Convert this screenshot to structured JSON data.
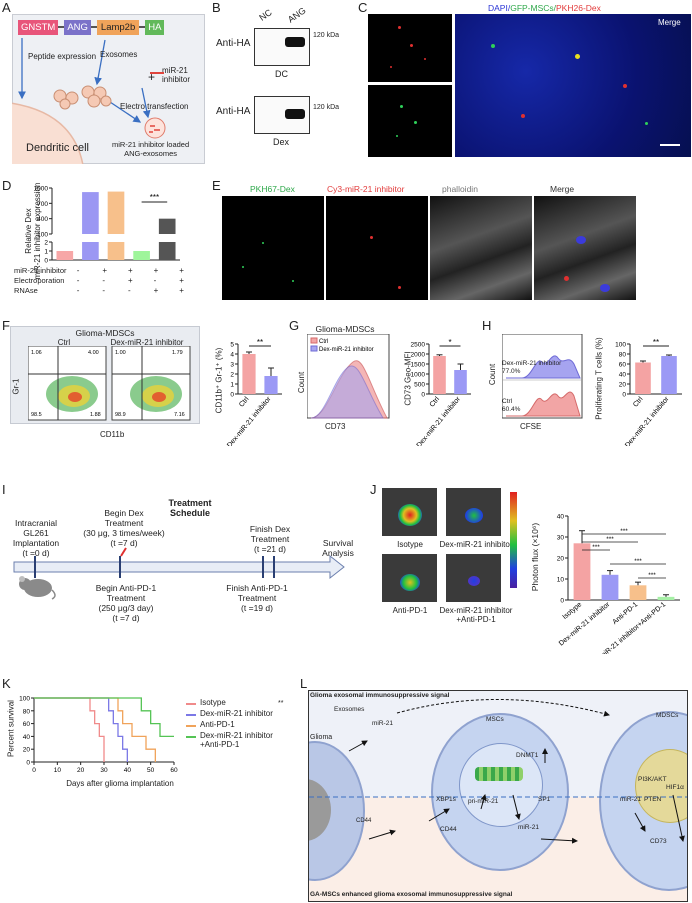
{
  "panels": [
    "A",
    "B",
    "C",
    "D",
    "E",
    "F",
    "G",
    "H",
    "I",
    "J",
    "K",
    "L"
  ],
  "panelA": {
    "construct": [
      "GNSTM",
      "ANG",
      "Lamp2b",
      "HA"
    ],
    "peptide_expression": "Peptide expression",
    "exosomes": "Exosomes",
    "mir21_inhibitor": "miR-21\ninhibitor",
    "electro": "Electro transfection",
    "loaded": "miR-21 inhibitor loaded\nANG-exosomes",
    "cell": "Dendritic cell",
    "colors": {
      "GNSTM": "#e8557a",
      "ANG": "#7b72c9",
      "Lamp2b": "#f0a35a",
      "HA": "#62b95a"
    }
  },
  "panelB": {
    "nc": "NC",
    "ang": "ANG",
    "anti_ha": "Anti-HA",
    "marker": "120 kDa",
    "dc": "DC",
    "dex": "Dex"
  },
  "panelC": {
    "dapi": "DAPI/",
    "gfp": "GFP-MSCs/",
    "pkh": "PKH26-Dex",
    "merge": "Merge"
  },
  "panelD": {
    "ylabel": "Relative Dex\nmiR-21 inhibitor expression",
    "rows": [
      "miR-21 inhibitor",
      "Electroporation",
      "RNAse"
    ],
    "signs": [
      [
        "-",
        "+",
        "+",
        "+",
        "+"
      ],
      [
        "-",
        "-",
        "+",
        "-",
        "+"
      ],
      [
        "-",
        "-",
        "-",
        "+",
        "+"
      ]
    ],
    "sig": "***",
    "chart_data": {
      "type": "bar",
      "categories": [
        "1",
        "2",
        "3",
        "4",
        "5"
      ],
      "values": [
        1,
        920,
        930,
        1,
        400
      ],
      "ylim_top": [
        100,
        1000
      ],
      "ylim_bottom": [
        0,
        2
      ],
      "y_ticks_top": [
        100,
        400,
        700,
        1000
      ],
      "y_ticks_bottom": [
        0,
        1,
        2
      ],
      "colors": [
        "#f7a7a7",
        "#9b97f3",
        "#f7c08b",
        "#9ff59b",
        "#555555"
      ]
    }
  },
  "panelE": {
    "pkh67": "PKH67-Dex",
    "cy3": "Cy3-miR-21 inhibitor",
    "phalloidin": "phalloidin",
    "merge": "Merge"
  },
  "panelF": {
    "title": "Glioma-MDSCs",
    "ctrl": "Ctrl",
    "dex": "Dex-miR-21 inhibitor",
    "ylabel": "Gr-1",
    "xlabel": "CD11b",
    "quad_ctrl": [
      "1.06",
      "4.00",
      "98.5",
      "1.88"
    ],
    "quad_dex": [
      "1.00",
      "1.79",
      "98.9",
      "7.16"
    ],
    "bar_ylabel": "CD11b⁺ Gr-1⁺ (%)",
    "sig": "**",
    "chart_data": {
      "type": "bar",
      "categories": [
        "Ctrl",
        "Dex-miR-21 inhibitor"
      ],
      "values": [
        4.0,
        1.8
      ],
      "errors": [
        0.2,
        0.8
      ],
      "ylim": [
        0,
        5
      ],
      "yticks": [
        0,
        1,
        2,
        3,
        4,
        5
      ],
      "colors": [
        "#f4a3a3",
        "#9b99f5"
      ]
    }
  },
  "panelG": {
    "title": "Glioma-MDSCs",
    "legend": [
      "Ctrl",
      "Dex-miR-21 inhibitor"
    ],
    "ylabel": "Count",
    "xlabel": "CD73",
    "bar_ylabel": "CD73 Geo-MFI",
    "sig": "*",
    "chart_data": {
      "type": "bar",
      "categories": [
        "Ctrl",
        "Dex-miR-21 inhibitor"
      ],
      "values": [
        1900,
        1200
      ],
      "errors": [
        60,
        300
      ],
      "ylim": [
        0,
        2500
      ],
      "yticks": [
        0,
        500,
        1000,
        1500,
        2000,
        2500
      ],
      "colors": [
        "#f4a3a3",
        "#9b99f5"
      ]
    }
  },
  "panelH": {
    "ylabel": "Count",
    "xlabel": "CFSE",
    "dex_label": "Dex-miR-21 inhibitor",
    "dex_value": "77.0%",
    "ctrl_label": "Ctrl",
    "ctrl_value": "60.4%",
    "bar_ylabel": "Proliferating T cells (%)",
    "sig": "**",
    "chart_data": {
      "type": "bar",
      "categories": [
        "Ctrl",
        "Dex-miR-21 inhibitor"
      ],
      "values": [
        63,
        76
      ],
      "errors": [
        3,
        2
      ],
      "ylim": [
        0,
        100
      ],
      "yticks": [
        0,
        20,
        40,
        60,
        80,
        100
      ],
      "colors": [
        "#f4a3a3",
        "#9b99f5"
      ]
    }
  },
  "panelI": {
    "title": "Treatment\nSchedule",
    "implant": "Intracranial\nGL261\nImplantation\n(t =0 d)",
    "begin_dex": "Begin Dex\nTreatment\n(30 μg, 3 times/week)\n(t =7 d)",
    "finish_dex": "Finish Dex\nTreatment\n(t =21 d)",
    "survival": "Survival\nAnalysis",
    "begin_pd1": "Begin Anti-PD-1\nTreatment\n(250 μg/3 day)\n(t =7 d)",
    "finish_pd1": "Finish Anti-PD-1\nTreatment\n(t =19 d)"
  },
  "panelJ": {
    "groups": [
      "Isotype",
      "Dex-miR-21 inhibitor",
      "Anti-PD-1",
      "Dex-miR-21 inhibitor\n+Anti-PD-1"
    ],
    "ylabel": "Photon flux (×10⁶)",
    "sig": [
      "***",
      "***",
      "***",
      "***",
      "***"
    ],
    "chart_data": {
      "type": "bar",
      "categories": [
        "Isotype",
        "Dex-miR-21 inhibitor",
        "Anti-PD-1",
        "Dex-miR-21 inhibitor+Anti-PD-1"
      ],
      "values": [
        27,
        12,
        7,
        1.5
      ],
      "errors": [
        6,
        2,
        1.5,
        1
      ],
      "ylim": [
        0,
        40
      ],
      "yticks": [
        0,
        10,
        20,
        30,
        40
      ],
      "colors": [
        "#f4a3a3",
        "#9b99f5",
        "#f7c08b",
        "#a6f0a6"
      ]
    }
  },
  "panelK": {
    "ylabel": "Percent survival",
    "xlabel": "Days after glioma implantation",
    "legend": [
      "Isotype",
      "Dex-miR-21 inhibitor",
      "Anti-PD-1",
      "Dex-miR-21 inhibitor\n+Anti-PD-1"
    ],
    "sig": "**",
    "chart_data": {
      "type": "line",
      "xlim": [
        0,
        60
      ],
      "ylim": [
        0,
        100
      ],
      "xticks": [
        0,
        10,
        20,
        30,
        40,
        50,
        60
      ],
      "yticks": [
        0,
        20,
        40,
        60,
        80,
        100
      ],
      "series": [
        {
          "name": "Isotype",
          "color": "#f08a8a",
          "x": [
            0,
            24,
            24,
            26,
            26,
            28,
            28,
            30,
            30
          ],
          "y": [
            100,
            100,
            80,
            80,
            60,
            60,
            40,
            40,
            0
          ]
        },
        {
          "name": "Dex-miR-21 inhibitor",
          "color": "#7b78e6",
          "x": [
            0,
            32,
            32,
            34,
            34,
            36,
            36,
            38,
            38,
            40,
            40
          ],
          "y": [
            100,
            100,
            80,
            80,
            60,
            60,
            40,
            40,
            20,
            20,
            0
          ]
        },
        {
          "name": "Anti-PD-1",
          "color": "#f0a35a",
          "x": [
            0,
            36,
            36,
            38,
            38,
            42,
            42,
            48,
            48,
            52,
            52
          ],
          "y": [
            100,
            100,
            80,
            80,
            60,
            60,
            40,
            40,
            20,
            20,
            0
          ]
        },
        {
          "name": "Dex-miR-21 inhibitor+Anti-PD-1",
          "color": "#55c455",
          "x": [
            0,
            46,
            46,
            50,
            50,
            54,
            54,
            56,
            56,
            60
          ],
          "y": [
            100,
            100,
            80,
            80,
            60,
            60,
            40,
            40,
            40,
            40
          ]
        }
      ]
    }
  },
  "panelL": {
    "top_signal": "Glioma exosomal immunosuppressive signal",
    "bottom_signal": "GA-MSCs enhanced glioma exosomal immunosuppressive signal",
    "glioma": "Glioma",
    "exosomes": "Exosomes",
    "mir21": "miR-21",
    "mscs": "MSCs",
    "mdscs": "MDSCs",
    "dnmt1": "DNMT1",
    "sp1": "SP1",
    "xbp1s": "XBP1s",
    "pri": "pri-miR-21",
    "cd44": "CD44",
    "mir21b": "miR-21",
    "pi3k": "PI3K/AKT",
    "pten": "PTEN",
    "hif": "HIF1α",
    "cd73": "CD73"
  }
}
